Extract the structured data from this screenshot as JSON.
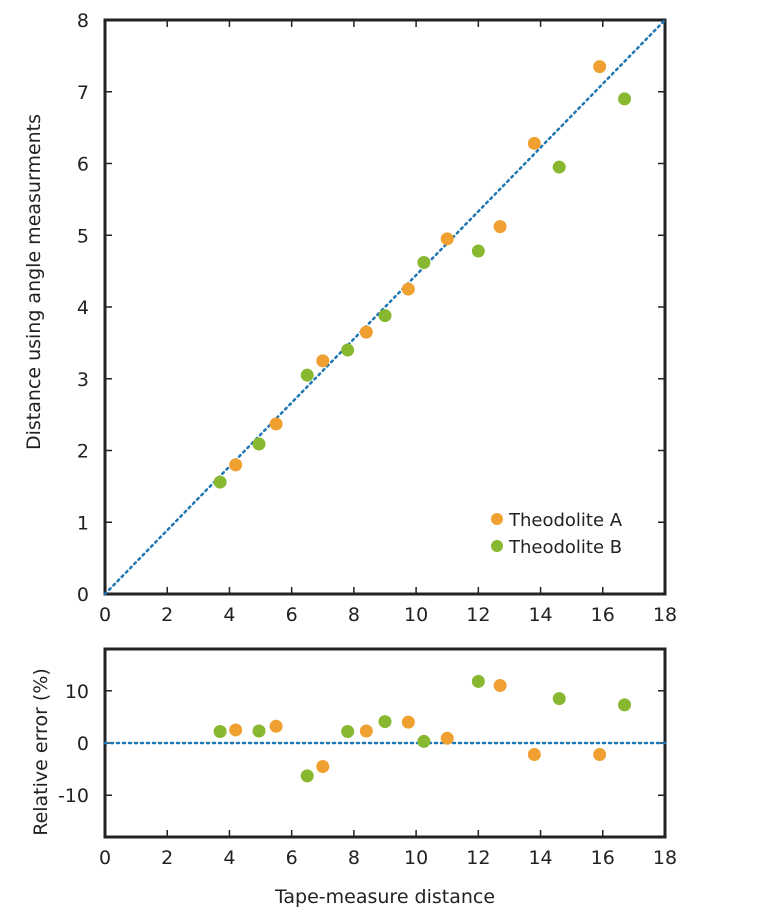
{
  "chart_data": [
    {
      "type": "scatter",
      "xlabel": "",
      "ylabel": "Distance using angle measurments",
      "xlim": [
        0,
        18
      ],
      "ylim": [
        0,
        8
      ],
      "x_ticks": [
        0,
        2,
        4,
        6,
        8,
        10,
        12,
        14,
        16,
        18
      ],
      "y_ticks": [
        0,
        1,
        2,
        3,
        4,
        5,
        6,
        7,
        8
      ],
      "reference_line": {
        "style": "dotted",
        "color": "#1f77b4",
        "points": [
          [
            0,
            0
          ],
          [
            18,
            8
          ]
        ]
      },
      "legend": {
        "position": "bottom-right"
      },
      "series": [
        {
          "name": "Theodolite A",
          "color": "#F0A030",
          "points": [
            [
              4.2,
              1.8
            ],
            [
              5.5,
              2.37
            ],
            [
              7.0,
              3.25
            ],
            [
              8.4,
              3.65
            ],
            [
              9.75,
              4.25
            ],
            [
              11.0,
              4.95
            ],
            [
              12.7,
              5.12
            ],
            [
              13.8,
              6.28
            ],
            [
              15.9,
              7.35
            ]
          ]
        },
        {
          "name": "Theodolite B",
          "color": "#88B830",
          "points": [
            [
              3.7,
              1.56
            ],
            [
              4.95,
              2.09
            ],
            [
              6.5,
              3.05
            ],
            [
              7.8,
              3.4
            ],
            [
              9.0,
              3.88
            ],
            [
              10.25,
              4.62
            ],
            [
              12.0,
              4.78
            ],
            [
              14.6,
              5.95
            ],
            [
              16.7,
              6.9
            ]
          ]
        }
      ]
    },
    {
      "type": "scatter",
      "xlabel": "Tape-measure distance",
      "ylabel": "Relative error (%)",
      "xlim": [
        0,
        18
      ],
      "ylim": [
        -18,
        18
      ],
      "x_ticks": [
        0,
        2,
        4,
        6,
        8,
        10,
        12,
        14,
        16,
        18
      ],
      "y_ticks": [
        10,
        0,
        -10
      ],
      "reference_line": {
        "style": "dotted",
        "color": "#1f77b4",
        "points": [
          [
            0,
            0
          ],
          [
            18,
            0
          ]
        ]
      },
      "series": [
        {
          "name": "Theodolite A",
          "color": "#F0A030",
          "points": [
            [
              4.2,
              2.5
            ],
            [
              5.5,
              3.2
            ],
            [
              7.0,
              -4.5
            ],
            [
              8.4,
              2.3
            ],
            [
              9.75,
              4.0
            ],
            [
              11.0,
              0.9
            ],
            [
              12.7,
              11.0
            ],
            [
              13.8,
              -2.2
            ],
            [
              15.9,
              -2.2
            ]
          ]
        },
        {
          "name": "Theodolite B",
          "color": "#88B830",
          "points": [
            [
              3.7,
              2.2
            ],
            [
              4.95,
              2.3
            ],
            [
              6.5,
              -6.3
            ],
            [
              7.8,
              2.2
            ],
            [
              9.0,
              4.1
            ],
            [
              10.25,
              0.3
            ],
            [
              12.0,
              11.8
            ],
            [
              14.6,
              8.5
            ],
            [
              16.7,
              7.3
            ]
          ]
        }
      ]
    }
  ]
}
